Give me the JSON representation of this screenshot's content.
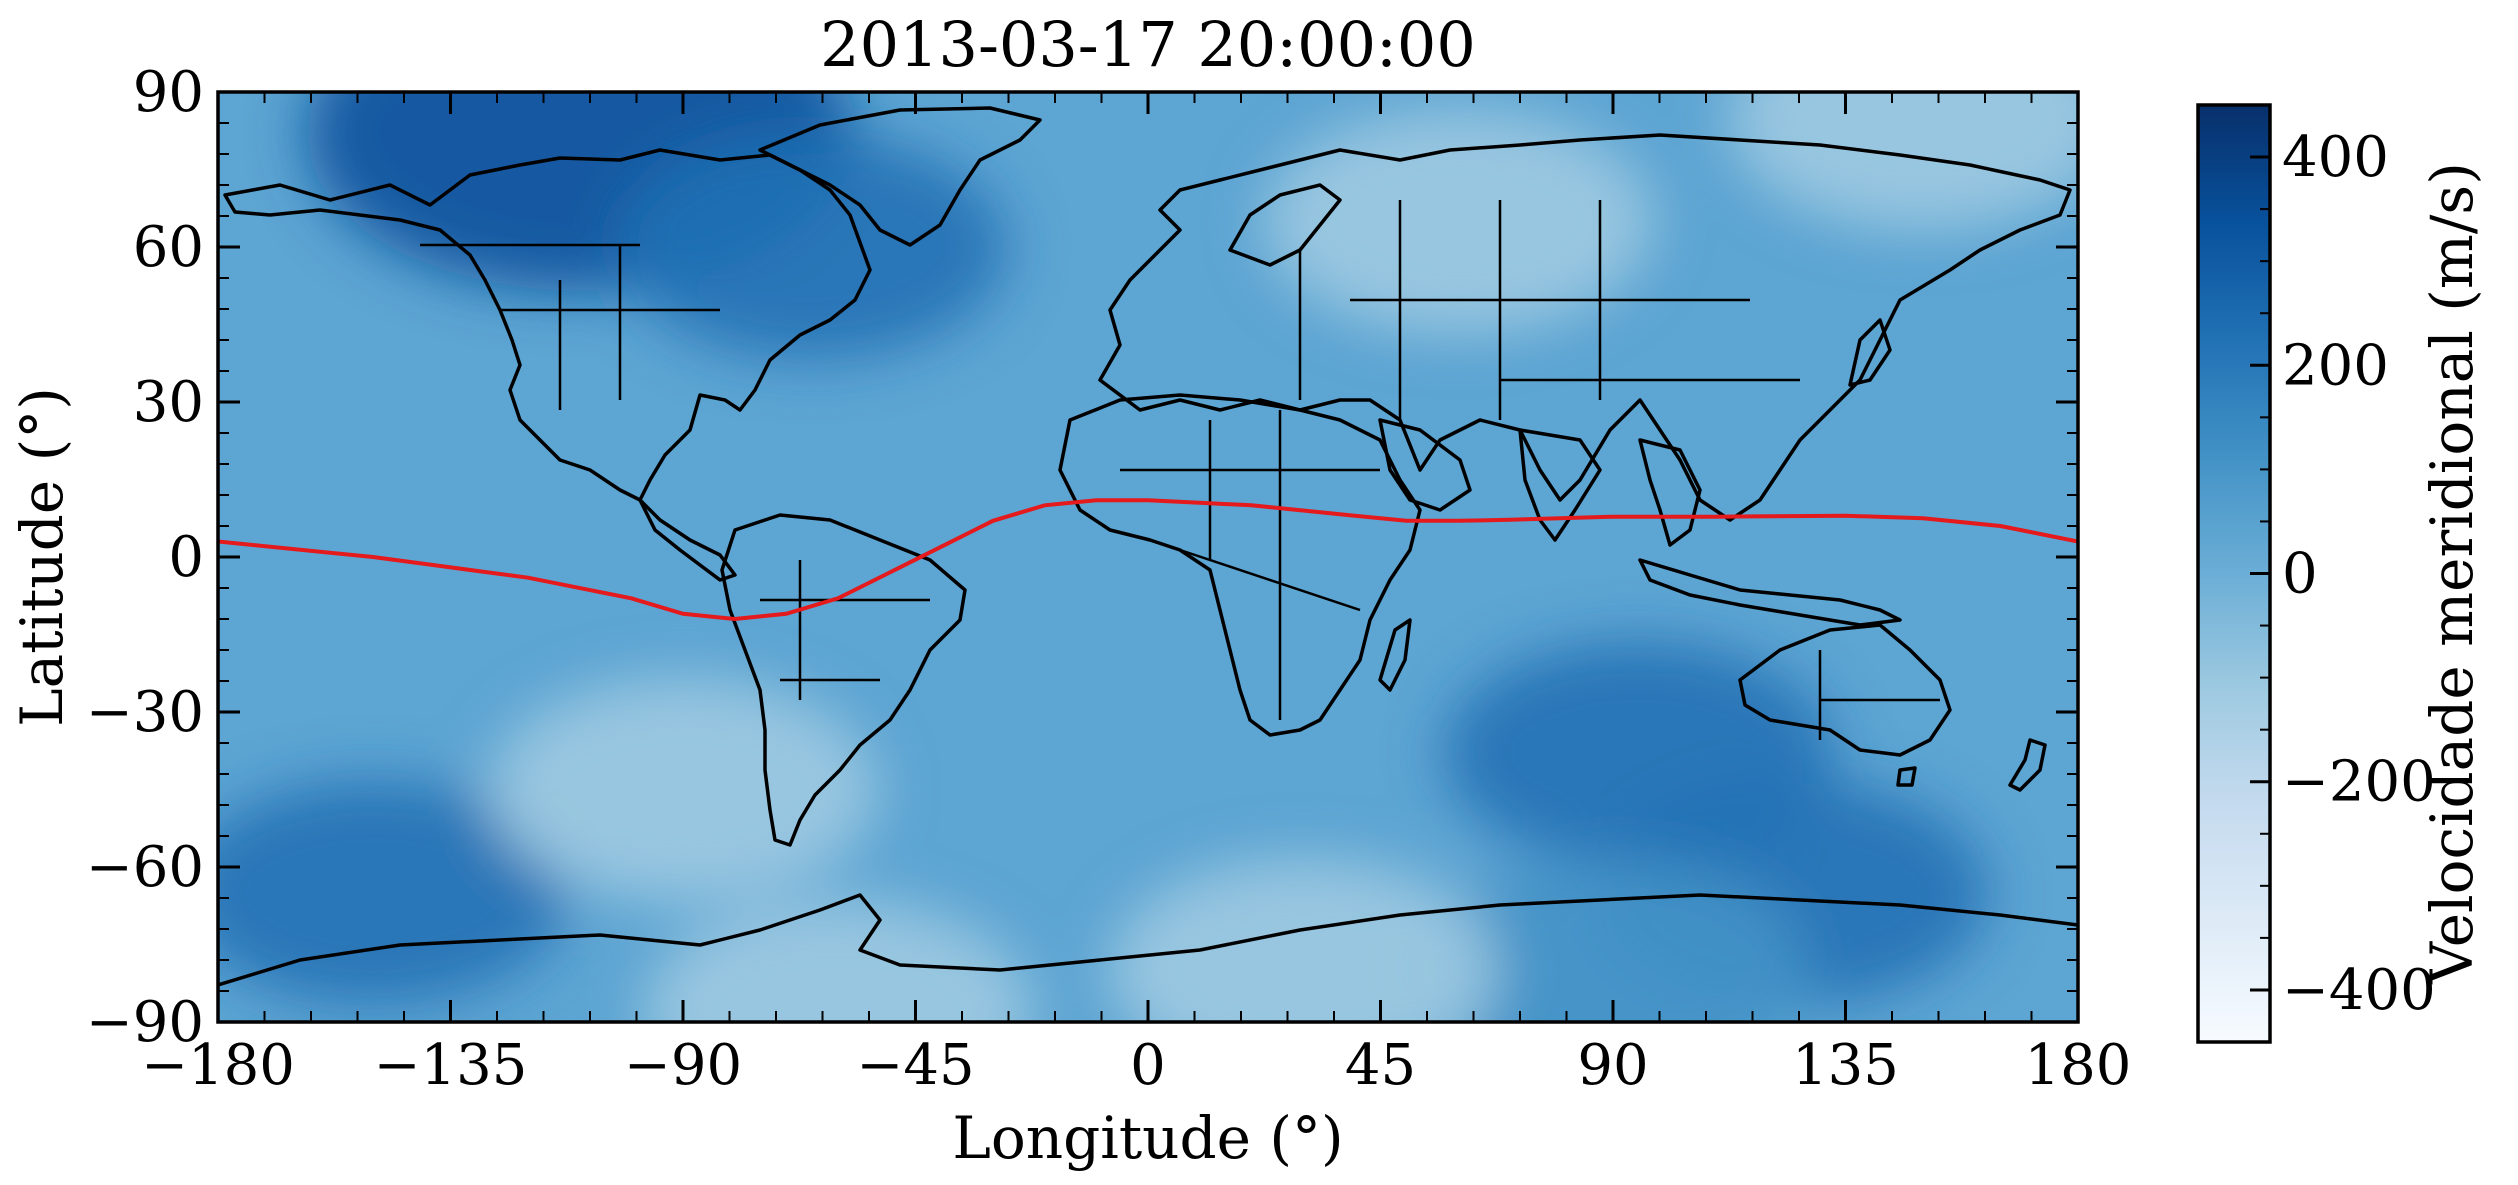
{
  "figure": {
    "title": "2013-03-17 20:00:00",
    "xlabel": "Longitude (°)",
    "ylabel": "Latitude (°)",
    "x_ticks": [
      "−180",
      "−135",
      "−90",
      "−45",
      "0",
      "45",
      "90",
      "135",
      "180"
    ],
    "y_ticks": [
      "−90",
      "−60",
      "−30",
      "0",
      "30",
      "60",
      "90"
    ]
  },
  "colorbar": {
    "label": "Velocidade meridional (m/s)",
    "ticks": [
      "−400",
      "−200",
      "0",
      "200",
      "400"
    ],
    "range": [
      -450,
      450
    ],
    "colormap": "Blues",
    "color_low": "#f7fbff",
    "color_high": "#08306b"
  },
  "chart_data": {
    "type": "heatmap",
    "x_range": [
      -180,
      180
    ],
    "y_range": [
      -90,
      90
    ],
    "x_tick_values": [
      -180,
      -135,
      -90,
      -45,
      0,
      45,
      90,
      135,
      180
    ],
    "y_tick_values": [
      -90,
      -60,
      -30,
      0,
      30,
      60,
      90
    ],
    "colorbar_tick_values": [
      -400,
      -200,
      0,
      200,
      400
    ],
    "overlays": [
      "coastlines",
      "country-borders",
      "us-state-borders",
      "australia-state-borders"
    ],
    "line_series": {
      "color": "#e41a1c",
      "points": [
        [
          -180,
          3
        ],
        [
          -150,
          0
        ],
        [
          -120,
          -4
        ],
        [
          -100,
          -8
        ],
        [
          -90,
          -11
        ],
        [
          -80,
          -12
        ],
        [
          -70,
          -11
        ],
        [
          -60,
          -8
        ],
        [
          -50,
          -3
        ],
        [
          -40,
          2
        ],
        [
          -30,
          7
        ],
        [
          -20,
          10
        ],
        [
          -10,
          11
        ],
        [
          0,
          11
        ],
        [
          10,
          10.5
        ],
        [
          20,
          10
        ],
        [
          30,
          9
        ],
        [
          40,
          8
        ],
        [
          50,
          7
        ],
        [
          60,
          7
        ],
        [
          70,
          7.2
        ],
        [
          90,
          7.8
        ],
        [
          110,
          7.8
        ],
        [
          135,
          8
        ],
        [
          150,
          7.5
        ],
        [
          165,
          6
        ],
        [
          180,
          3
        ]
      ]
    },
    "anomalies": [
      {
        "lon": -110,
        "lat": 82,
        "value": 380
      },
      {
        "lon": -65,
        "lat": 60,
        "value": 220
      },
      {
        "lon": -150,
        "lat": -65,
        "value": 180
      },
      {
        "lon": 95,
        "lat": -38,
        "value": 200
      },
      {
        "lon": 125,
        "lat": -65,
        "value": 200
      },
      {
        "lon": 90,
        "lat": -80,
        "value": 150
      },
      {
        "lon": 60,
        "lat": 65,
        "value": -100
      },
      {
        "lon": 150,
        "lat": 85,
        "value": -150
      },
      {
        "lon": -90,
        "lat": -45,
        "value": -80
      },
      {
        "lon": -60,
        "lat": -88,
        "value": -120
      },
      {
        "lon": 30,
        "lat": -80,
        "value": -90
      }
    ]
  }
}
